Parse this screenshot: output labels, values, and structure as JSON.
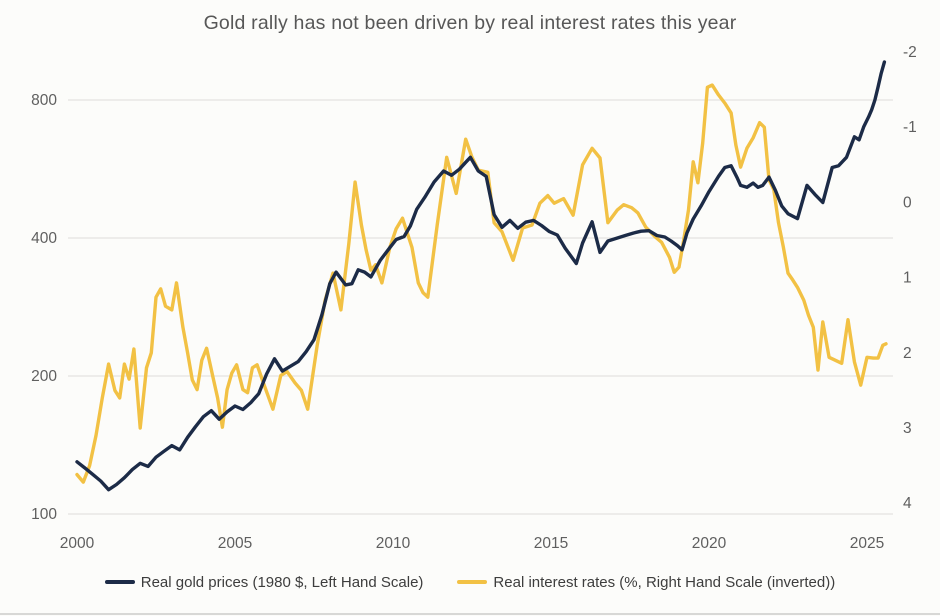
{
  "chart_data": {
    "type": "line",
    "title": "Gold rally has not been driven by real interest rates this year",
    "grid": "horizontal-only",
    "legend_position": "bottom",
    "x_axis": {
      "ticks": [
        2000,
        2005,
        2010,
        2015,
        2020,
        2025
      ],
      "min": 2000,
      "max": 2025.7
    },
    "left_axis": {
      "ticks": [
        100,
        200,
        400,
        800
      ],
      "scale": "log2",
      "label": "Real gold prices (1980 $)"
    },
    "right_axis": {
      "ticks": [
        -2,
        -1,
        0,
        1,
        2,
        3,
        4
      ],
      "inverted": true,
      "label": "Real interest rates (%)"
    },
    "colors": {
      "gold_prices": "#1C2B47",
      "real_rates": "#F2C144",
      "grid": "#e4e3e0",
      "text": "#5f5f5f"
    },
    "series": [
      {
        "name": "Real gold prices (1980 $, Left Hand Scale)",
        "axis": "left",
        "color": "#1C2B47",
        "points": [
          [
            2000.0,
            130
          ],
          [
            2000.25,
            126
          ],
          [
            2000.5,
            122
          ],
          [
            2000.75,
            118
          ],
          [
            2001.0,
            113
          ],
          [
            2001.25,
            116
          ],
          [
            2001.5,
            120
          ],
          [
            2001.75,
            125
          ],
          [
            2002.0,
            129
          ],
          [
            2002.25,
            127
          ],
          [
            2002.5,
            133
          ],
          [
            2002.75,
            137
          ],
          [
            2003.0,
            141
          ],
          [
            2003.25,
            138
          ],
          [
            2003.5,
            147
          ],
          [
            2003.75,
            155
          ],
          [
            2004.0,
            163
          ],
          [
            2004.25,
            168
          ],
          [
            2004.5,
            161
          ],
          [
            2004.75,
            167
          ],
          [
            2005.0,
            172
          ],
          [
            2005.25,
            169
          ],
          [
            2005.5,
            175
          ],
          [
            2005.75,
            183
          ],
          [
            2006.0,
            202
          ],
          [
            2006.25,
            218
          ],
          [
            2006.5,
            205
          ],
          [
            2006.75,
            210
          ],
          [
            2007.0,
            215
          ],
          [
            2007.25,
            226
          ],
          [
            2007.5,
            240
          ],
          [
            2007.75,
            272
          ],
          [
            2008.0,
            318
          ],
          [
            2008.2,
            337
          ],
          [
            2008.5,
            316
          ],
          [
            2008.7,
            318
          ],
          [
            2008.9,
            341
          ],
          [
            2009.1,
            337
          ],
          [
            2009.3,
            329
          ],
          [
            2009.6,
            358
          ],
          [
            2009.9,
            381
          ],
          [
            2010.1,
            397
          ],
          [
            2010.35,
            403
          ],
          [
            2010.55,
            425
          ],
          [
            2010.75,
            462
          ],
          [
            2011.0,
            490
          ],
          [
            2011.3,
            530
          ],
          [
            2011.6,
            560
          ],
          [
            2011.85,
            548
          ],
          [
            2012.1,
            565
          ],
          [
            2012.3,
            585
          ],
          [
            2012.45,
            600
          ],
          [
            2012.7,
            560
          ],
          [
            2012.95,
            545
          ],
          [
            2013.2,
            450
          ],
          [
            2013.45,
            422
          ],
          [
            2013.7,
            437
          ],
          [
            2013.95,
            420
          ],
          [
            2014.2,
            433
          ],
          [
            2014.45,
            437
          ],
          [
            2014.7,
            426
          ],
          [
            2014.95,
            413
          ],
          [
            2015.2,
            406
          ],
          [
            2015.45,
            380
          ],
          [
            2015.8,
            352
          ],
          [
            2016.0,
            390
          ],
          [
            2016.3,
            434
          ],
          [
            2016.55,
            372
          ],
          [
            2016.8,
            394
          ],
          [
            2017.1,
            400
          ],
          [
            2017.35,
            405
          ],
          [
            2017.6,
            410
          ],
          [
            2017.85,
            414
          ],
          [
            2018.1,
            415
          ],
          [
            2018.35,
            405
          ],
          [
            2018.6,
            402
          ],
          [
            2018.8,
            394
          ],
          [
            2019.0,
            385
          ],
          [
            2019.15,
            377
          ],
          [
            2019.3,
            410
          ],
          [
            2019.5,
            440
          ],
          [
            2019.75,
            470
          ],
          [
            2020.0,
            505
          ],
          [
            2020.3,
            545
          ],
          [
            2020.5,
            570
          ],
          [
            2020.7,
            575
          ],
          [
            2020.9,
            540
          ],
          [
            2021.0,
            521
          ],
          [
            2021.2,
            516
          ],
          [
            2021.4,
            527
          ],
          [
            2021.55,
            516
          ],
          [
            2021.7,
            521
          ],
          [
            2021.9,
            543
          ],
          [
            2022.1,
            508
          ],
          [
            2022.3,
            470
          ],
          [
            2022.5,
            452
          ],
          [
            2022.8,
            441
          ],
          [
            2023.1,
            521
          ],
          [
            2023.35,
            498
          ],
          [
            2023.6,
            478
          ],
          [
            2023.9,
            570
          ],
          [
            2024.1,
            575
          ],
          [
            2024.35,
            600
          ],
          [
            2024.6,
            665
          ],
          [
            2024.75,
            655
          ],
          [
            2024.9,
            700
          ],
          [
            2025.05,
            735
          ],
          [
            2025.15,
            762
          ],
          [
            2025.25,
            800
          ],
          [
            2025.35,
            855
          ],
          [
            2025.45,
            915
          ],
          [
            2025.55,
            968
          ]
        ]
      },
      {
        "name": "Real interest rates (%, Right Hand Scale (inverted))",
        "axis": "right",
        "color": "#F2C144",
        "points": [
          [
            2000.0,
            3.62
          ],
          [
            2000.2,
            3.72
          ],
          [
            2000.4,
            3.5
          ],
          [
            2000.6,
            3.1
          ],
          [
            2000.8,
            2.6
          ],
          [
            2001.0,
            2.15
          ],
          [
            2001.2,
            2.5
          ],
          [
            2001.35,
            2.6
          ],
          [
            2001.5,
            2.15
          ],
          [
            2001.65,
            2.35
          ],
          [
            2001.8,
            1.95
          ],
          [
            2002.0,
            3.0
          ],
          [
            2002.2,
            2.2
          ],
          [
            2002.35,
            2.0
          ],
          [
            2002.5,
            1.26
          ],
          [
            2002.65,
            1.15
          ],
          [
            2002.8,
            1.38
          ],
          [
            2003.0,
            1.43
          ],
          [
            2003.15,
            1.07
          ],
          [
            2003.35,
            1.66
          ],
          [
            2003.5,
            2.0
          ],
          [
            2003.65,
            2.36
          ],
          [
            2003.8,
            2.49
          ],
          [
            2003.95,
            2.1
          ],
          [
            2004.1,
            1.94
          ],
          [
            2004.3,
            2.32
          ],
          [
            2004.45,
            2.6
          ],
          [
            2004.6,
            2.99
          ],
          [
            2004.75,
            2.49
          ],
          [
            2004.9,
            2.27
          ],
          [
            2005.05,
            2.16
          ],
          [
            2005.25,
            2.49
          ],
          [
            2005.4,
            2.53
          ],
          [
            2005.55,
            2.2
          ],
          [
            2005.7,
            2.16
          ],
          [
            2005.9,
            2.4
          ],
          [
            2006.2,
            2.75
          ],
          [
            2006.45,
            2.3
          ],
          [
            2006.65,
            2.25
          ],
          [
            2006.9,
            2.4
          ],
          [
            2007.1,
            2.5
          ],
          [
            2007.3,
            2.75
          ],
          [
            2007.6,
            1.9
          ],
          [
            2007.85,
            1.3
          ],
          [
            2008.1,
            0.94
          ],
          [
            2008.35,
            1.43
          ],
          [
            2008.6,
            0.55
          ],
          [
            2008.8,
            -0.27
          ],
          [
            2009.0,
            0.3
          ],
          [
            2009.15,
            0.63
          ],
          [
            2009.3,
            0.9
          ],
          [
            2009.45,
            0.83
          ],
          [
            2009.65,
            1.07
          ],
          [
            2009.9,
            0.6
          ],
          [
            2010.1,
            0.35
          ],
          [
            2010.3,
            0.21
          ],
          [
            2010.6,
            0.6
          ],
          [
            2010.8,
            1.07
          ],
          [
            2010.95,
            1.2
          ],
          [
            2011.1,
            1.26
          ],
          [
            2011.4,
            0.3
          ],
          [
            2011.7,
            -0.6
          ],
          [
            2012.0,
            -0.12
          ],
          [
            2012.3,
            -0.84
          ],
          [
            2012.5,
            -0.6
          ],
          [
            2012.7,
            -0.43
          ],
          [
            2013.0,
            -0.4
          ],
          [
            2013.2,
            0.27
          ],
          [
            2013.45,
            0.39
          ],
          [
            2013.8,
            0.77
          ],
          [
            2014.1,
            0.34
          ],
          [
            2014.4,
            0.3
          ],
          [
            2014.65,
            0.01
          ],
          [
            2014.9,
            -0.09
          ],
          [
            2015.1,
            0.01
          ],
          [
            2015.4,
            -0.05
          ],
          [
            2015.7,
            0.17
          ],
          [
            2016.0,
            -0.5
          ],
          [
            2016.3,
            -0.72
          ],
          [
            2016.55,
            -0.59
          ],
          [
            2016.8,
            0.27
          ],
          [
            2017.1,
            0.1
          ],
          [
            2017.3,
            0.03
          ],
          [
            2017.55,
            0.07
          ],
          [
            2017.75,
            0.14
          ],
          [
            2018.0,
            0.33
          ],
          [
            2018.3,
            0.46
          ],
          [
            2018.5,
            0.53
          ],
          [
            2018.75,
            0.73
          ],
          [
            2018.9,
            0.93
          ],
          [
            2019.05,
            0.86
          ],
          [
            2019.2,
            0.5
          ],
          [
            2019.35,
            0.1
          ],
          [
            2019.5,
            -0.54
          ],
          [
            2019.65,
            -0.26
          ],
          [
            2019.8,
            -0.79
          ],
          [
            2019.95,
            -1.53
          ],
          [
            2020.1,
            -1.56
          ],
          [
            2020.3,
            -1.43
          ],
          [
            2020.5,
            -1.32
          ],
          [
            2020.7,
            -1.19
          ],
          [
            2020.85,
            -0.76
          ],
          [
            2021.0,
            -0.47
          ],
          [
            2021.2,
            -0.72
          ],
          [
            2021.4,
            -0.86
          ],
          [
            2021.6,
            -1.06
          ],
          [
            2021.75,
            -1.0
          ],
          [
            2021.9,
            -0.3
          ],
          [
            2022.05,
            -0.17
          ],
          [
            2022.2,
            0.27
          ],
          [
            2022.35,
            0.59
          ],
          [
            2022.5,
            0.94
          ],
          [
            2022.65,
            1.03
          ],
          [
            2022.8,
            1.13
          ],
          [
            2023.0,
            1.3
          ],
          [
            2023.15,
            1.5
          ],
          [
            2023.3,
            1.66
          ],
          [
            2023.45,
            2.23
          ],
          [
            2023.6,
            1.59
          ],
          [
            2023.8,
            2.06
          ],
          [
            2024.0,
            2.1
          ],
          [
            2024.2,
            2.14
          ],
          [
            2024.4,
            1.56
          ],
          [
            2024.6,
            2.12
          ],
          [
            2024.8,
            2.43
          ],
          [
            2025.0,
            2.06
          ],
          [
            2025.2,
            2.07
          ],
          [
            2025.35,
            2.07
          ],
          [
            2025.5,
            1.9
          ],
          [
            2025.6,
            1.88
          ]
        ]
      }
    ]
  }
}
